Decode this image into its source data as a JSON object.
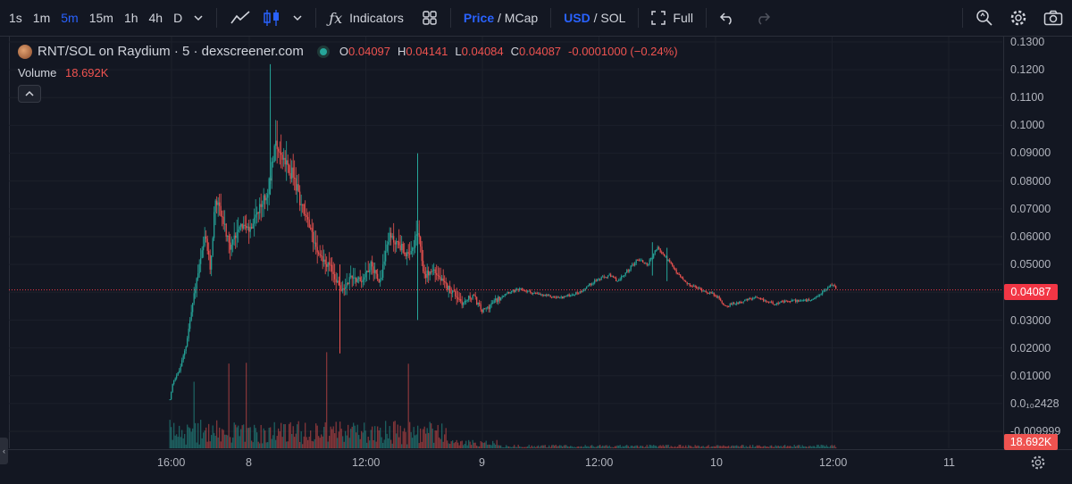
{
  "toolbar": {
    "intervals": [
      "1s",
      "1m",
      "5m",
      "15m",
      "1h",
      "4h",
      "D"
    ],
    "active_interval": "5m",
    "indicators_label": "Indicators",
    "price_label": "Price",
    "mcap_label": "/ MCap",
    "usd_label": "USD",
    "sol_label": "/ SOL",
    "full_label": "Full"
  },
  "legend": {
    "symbol": "RNT/SOL on Raydium · 5 · dexscreener.com",
    "o_label": "O",
    "o": "0.04097",
    "h_label": "H",
    "h": "0.04141",
    "l_label": "L",
    "l": "0.04084",
    "c_label": "C",
    "c": "0.04087",
    "change": "-0.0001000 (−0.24%)",
    "volume_label": "Volume",
    "volume": "18.692K"
  },
  "price_axis": {
    "ticks": [
      "0.1300",
      "0.1200",
      "0.1100",
      "0.1000",
      "0.09000",
      "0.08000",
      "0.07000",
      "0.06000",
      "0.05000",
      "0.03000",
      "0.02000",
      "0.01000",
      "0.0₁₀2428",
      "-0.009999"
    ],
    "last_price_label": "0.04087",
    "volume_label": "18.692K"
  },
  "time_axis": {
    "ticks": [
      "16:00",
      "8",
      "12:00",
      "9",
      "12:00",
      "10",
      "12:00",
      "11"
    ]
  },
  "chart_data": {
    "type": "candlestick",
    "symbol": "RNT/SOL",
    "interval": "5m",
    "y_range": [
      -0.01,
      0.13
    ],
    "last_price": 0.04087,
    "price_path": [
      {
        "x": "7 15:50",
        "y": 0.0015
      },
      {
        "x": "7 16:10",
        "y": 0.008
      },
      {
        "x": "7 16:50",
        "y": 0.012
      },
      {
        "x": "7 17:30",
        "y": 0.021
      },
      {
        "x": "7 18:30",
        "y": 0.043
      },
      {
        "x": "7 19:30",
        "y": 0.06
      },
      {
        "x": "7 20:00",
        "y": 0.048
      },
      {
        "x": "7 20:30",
        "y": 0.074
      },
      {
        "x": "7 21:10",
        "y": 0.068
      },
      {
        "x": "7 22:00",
        "y": 0.055
      },
      {
        "x": "7 23:00",
        "y": 0.065
      },
      {
        "x": "8 00:00",
        "y": 0.062
      },
      {
        "x": "8 01:00",
        "y": 0.069
      },
      {
        "x": "8 02:00",
        "y": 0.078
      },
      {
        "x": "8 02:40",
        "y": 0.095
      },
      {
        "x": "8 03:30",
        "y": 0.087
      },
      {
        "x": "8 04:30",
        "y": 0.082
      },
      {
        "x": "8 05:30",
        "y": 0.07
      },
      {
        "x": "8 06:30",
        "y": 0.06
      },
      {
        "x": "8 07:30",
        "y": 0.052
      },
      {
        "x": "8 08:30",
        "y": 0.048
      },
      {
        "x": "8 09:30",
        "y": 0.04
      },
      {
        "x": "8 10:30",
        "y": 0.046
      },
      {
        "x": "8 11:30",
        "y": 0.044
      },
      {
        "x": "8 12:30",
        "y": 0.05
      },
      {
        "x": "8 13:30",
        "y": 0.044
      },
      {
        "x": "8 14:20",
        "y": 0.06
      },
      {
        "x": "8 15:30",
        "y": 0.057
      },
      {
        "x": "8 16:30",
        "y": 0.052
      },
      {
        "x": "8 17:20",
        "y": 0.062
      },
      {
        "x": "8 18:00",
        "y": 0.046
      },
      {
        "x": "8 19:00",
        "y": 0.048
      },
      {
        "x": "8 20:00",
        "y": 0.043
      },
      {
        "x": "8 21:00",
        "y": 0.04
      },
      {
        "x": "8 22:00",
        "y": 0.036
      },
      {
        "x": "8 23:00",
        "y": 0.039
      },
      {
        "x": "9 00:00",
        "y": 0.033
      },
      {
        "x": "9 01:00",
        "y": 0.036
      },
      {
        "x": "9 02:30",
        "y": 0.04
      },
      {
        "x": "9 04:00",
        "y": 0.041
      },
      {
        "x": "9 06:00",
        "y": 0.039
      },
      {
        "x": "9 08:00",
        "y": 0.038
      },
      {
        "x": "9 10:00",
        "y": 0.04
      },
      {
        "x": "9 11:30",
        "y": 0.044
      },
      {
        "x": "9 13:00",
        "y": 0.046
      },
      {
        "x": "9 14:00",
        "y": 0.044
      },
      {
        "x": "9 15:00",
        "y": 0.048
      },
      {
        "x": "9 16:00",
        "y": 0.052
      },
      {
        "x": "9 17:00",
        "y": 0.05
      },
      {
        "x": "9 18:00",
        "y": 0.056
      },
      {
        "x": "9 19:00",
        "y": 0.052
      },
      {
        "x": "9 20:00",
        "y": 0.047
      },
      {
        "x": "9 21:00",
        "y": 0.043
      },
      {
        "x": "9 22:30",
        "y": 0.041
      },
      {
        "x": "10 00:00",
        "y": 0.039
      },
      {
        "x": "10 01:00",
        "y": 0.035
      },
      {
        "x": "10 02:00",
        "y": 0.036
      },
      {
        "x": "10 04:00",
        "y": 0.038
      },
      {
        "x": "10 06:00",
        "y": 0.036
      },
      {
        "x": "10 08:00",
        "y": 0.037
      },
      {
        "x": "10 10:00",
        "y": 0.037
      },
      {
        "x": "10 11:00",
        "y": 0.04
      },
      {
        "x": "10 12:00",
        "y": 0.043
      },
      {
        "x": "10 12:30",
        "y": 0.0409
      }
    ],
    "time_ticks": [
      "16:00",
      "8",
      "12:00",
      "9",
      "12:00",
      "10",
      "12:00",
      "11"
    ],
    "price_ticks": [
      "0.1300",
      "0.1200",
      "0.1100",
      "0.1000",
      "0.09000",
      "0.08000",
      "0.07000",
      "0.06000",
      "0.05000",
      "0.03000",
      "0.02000",
      "0.01000",
      "0.0₁₀2428",
      "-0.009999"
    ]
  },
  "colors": {
    "up": "#26a69a",
    "down": "#ef5350",
    "background": "#131722",
    "accent": "#2962ff",
    "price_line": "#f23645"
  }
}
